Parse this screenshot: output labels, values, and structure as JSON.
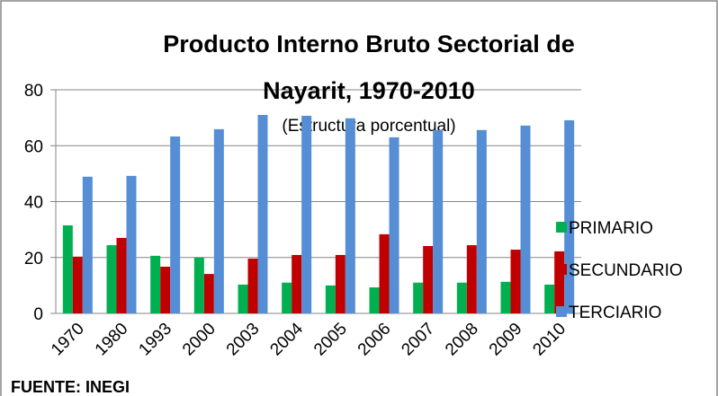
{
  "chart_data": {
    "type": "bar",
    "title": [
      "Producto Interno Bruto Sectorial de",
      "Nayarit, 1970-2010"
    ],
    "subtitle": "(Estructura porcentual)",
    "source": "FUENTE: INEGI",
    "categories": [
      "1970",
      "1980",
      "1993",
      "2000",
      "2003",
      "2004",
      "2005",
      "2006",
      "2007",
      "2008",
      "2009",
      "2010"
    ],
    "series": [
      {
        "name": "PRIMARIO",
        "color": "#00b050",
        "values": [
          31.5,
          24.4,
          20.6,
          20,
          10.3,
          11,
          10,
          9.3,
          11,
          11,
          11.3,
          10.3
        ]
      },
      {
        "name": "SECUNDARIO",
        "color": "#c00000",
        "values": [
          20.3,
          27,
          16.7,
          14.1,
          19.6,
          20.9,
          20.9,
          28.3,
          24.1,
          24.4,
          22.8,
          22.2
        ]
      },
      {
        "name": "TERCIARIO",
        "color": "#558ed5",
        "values": [
          48.9,
          49.2,
          63.3,
          65.9,
          71,
          70.7,
          69.8,
          63,
          65.6,
          65.6,
          67.2,
          69.1
        ]
      }
    ],
    "ylim": [
      0,
      80
    ],
    "yticks": [
      0,
      20,
      40,
      60,
      80
    ],
    "grid": true,
    "legend": "right"
  }
}
